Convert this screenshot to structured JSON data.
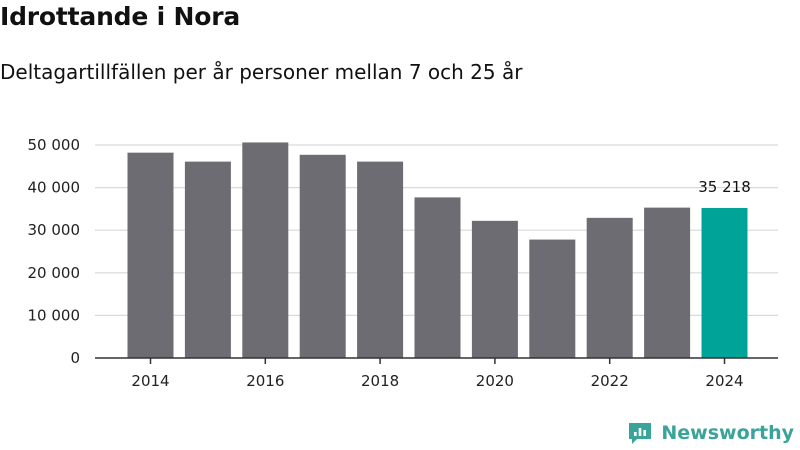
{
  "header": {
    "title": "Idrottande i Nora",
    "subtitle": "Deltagartillfällen per år personer mellan 7 och 25 år"
  },
  "brand": {
    "name": "Newsworthy",
    "icon": "newsworthy-logo-icon",
    "color": "#3aa39a"
  },
  "colors": {
    "bar": "#6d6c72",
    "highlight": "#00a398",
    "grid": "#d9d9d9",
    "axis": "#333333"
  },
  "chart_data": {
    "type": "bar",
    "categories": [
      "2014",
      "2015",
      "2016",
      "2017",
      "2018",
      "2019",
      "2020",
      "2021",
      "2022",
      "2023",
      "2024"
    ],
    "values": [
      48200,
      46100,
      50600,
      47700,
      46100,
      37700,
      32200,
      27800,
      32900,
      35300,
      35218
    ],
    "highlight_index": 10,
    "data_labels": [
      {
        "index": 10,
        "text": "35 218"
      }
    ],
    "ylim": [
      0,
      50000
    ],
    "yticks": [
      0,
      10000,
      20000,
      30000,
      40000,
      50000
    ],
    "ytick_labels": [
      "0",
      "10 000",
      "20 000",
      "30 000",
      "40 000",
      "50 000"
    ],
    "xtick_labels": [
      "2014",
      "2016",
      "2018",
      "2020",
      "2022",
      "2024"
    ],
    "grid": true,
    "xlabel": "",
    "ylabel": ""
  }
}
